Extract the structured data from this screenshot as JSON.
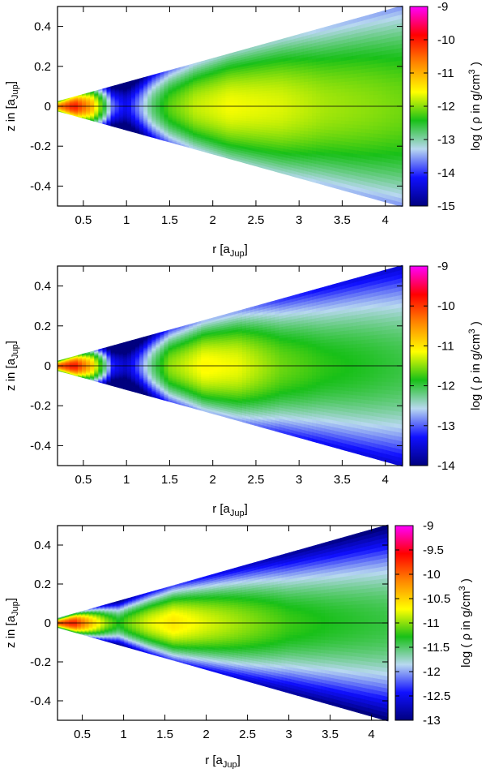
{
  "figure": {
    "panels": 3
  },
  "chart_data": [
    {
      "type": "heatmap",
      "panel": "top",
      "xlabel": "r [a_Jup]",
      "ylabel": "z in [a_Jup]",
      "colorbar_label": "log ( ρ in g/cm^3 )",
      "xlim": [
        0.2,
        4.2
      ],
      "ylim": [
        -0.5,
        0.5
      ],
      "x_ticks": [
        "0.5",
        "1",
        "1.5",
        "2",
        "2.5",
        "3",
        "3.5",
        "4"
      ],
      "y_ticks": [
        "-0.4",
        "-0.2",
        "0",
        "0.2",
        "0.4"
      ],
      "colorbar_range": [
        -15,
        -9
      ],
      "colorbar_ticks": [
        "-9",
        "-10",
        "-11",
        "-12",
        "-13",
        "-14",
        "-15"
      ],
      "disk_wedge": {
        "inner_r": 0.2,
        "outer_r": 4.2,
        "z_over_r": 0.12
      },
      "midplane_density_profile": {
        "r": [
          0.2,
          0.4,
          0.6,
          0.75,
          0.85,
          1.0,
          1.15,
          1.3,
          1.5,
          1.8,
          2.2,
          2.8,
          3.3,
          3.8,
          4.2
        ],
        "log_rho": [
          -10.8,
          -10.0,
          -11.0,
          -12.6,
          -13.8,
          -14.3,
          -13.6,
          -12.8,
          -12.2,
          -11.8,
          -11.6,
          -11.7,
          -11.9,
          -12.0,
          -12.1
        ]
      },
      "vertical_falloff": 1.5
    },
    {
      "type": "heatmap",
      "panel": "middle",
      "xlabel": "r [a_Jup]",
      "ylabel": "z in [a_Jup]",
      "colorbar_label": "log ( ρ in g/cm^3 )",
      "xlim": [
        0.2,
        4.2
      ],
      "ylim": [
        -0.5,
        0.5
      ],
      "x_ticks": [
        "0.5",
        "1",
        "1.5",
        "2",
        "2.5",
        "3",
        "3.5",
        "4"
      ],
      "y_ticks": [
        "-0.4",
        "-0.2",
        "0",
        "0.2",
        "0.4"
      ],
      "colorbar_range": [
        -14,
        -9
      ],
      "colorbar_ticks": [
        "-9",
        "-10",
        "-11",
        "-12",
        "-13",
        "-14"
      ],
      "disk_wedge": {
        "inner_r": 0.2,
        "outer_r": 4.2,
        "z_over_r": 0.12
      },
      "midplane_density_profile": {
        "r": [
          0.2,
          0.4,
          0.6,
          0.75,
          0.85,
          1.0,
          1.15,
          1.3,
          1.5,
          1.9,
          2.3,
          2.8,
          3.3,
          3.8,
          4.2
        ],
        "log_rho": [
          -10.3,
          -9.8,
          -10.8,
          -12.2,
          -13.3,
          -13.6,
          -13.0,
          -12.2,
          -11.5,
          -11.1,
          -11.2,
          -11.6,
          -11.8,
          -11.9,
          -12.0
        ]
      },
      "vertical_falloff": 1.6
    },
    {
      "type": "heatmap",
      "panel": "bottom",
      "xlabel": "r [a_Jup]",
      "ylabel": "z in [a_Jup]",
      "colorbar_label": "log ( ρ in g/cm^3 )",
      "xlim": [
        0.2,
        4.2
      ],
      "ylim": [
        -0.5,
        0.5
      ],
      "x_ticks": [
        "0.5",
        "1",
        "1.5",
        "2",
        "2.5",
        "3",
        "3.5",
        "4"
      ],
      "y_ticks": [
        "-0.4",
        "-0.2",
        "0",
        "0.2",
        "0.4"
      ],
      "colorbar_range": [
        -13,
        -9
      ],
      "colorbar_ticks": [
        "-9",
        "-9.5",
        "-10",
        "-10.5",
        "-11",
        "-11.5",
        "-12",
        "-12.5",
        "-13"
      ],
      "disk_wedge": {
        "inner_r": 0.2,
        "outer_r": 4.2,
        "z_over_r": 0.12
      },
      "midplane_density_profile": {
        "r": [
          0.2,
          0.4,
          0.6,
          0.8,
          0.95,
          1.05,
          1.3,
          1.6,
          2.0,
          2.5,
          3.0,
          3.5,
          4.2
        ],
        "log_rho": [
          -10.0,
          -9.7,
          -10.4,
          -11.0,
          -11.3,
          -11.1,
          -10.8,
          -10.6,
          -10.8,
          -11.0,
          -11.2,
          -11.3,
          -11.4
        ]
      },
      "vertical_falloff": 1.7
    }
  ],
  "colormap": [
    "#00007f",
    "#1010ff",
    "#b8d8f0",
    "#18c018",
    "#ffff00",
    "#ff8800",
    "#ff0000",
    "#ff00ff"
  ]
}
